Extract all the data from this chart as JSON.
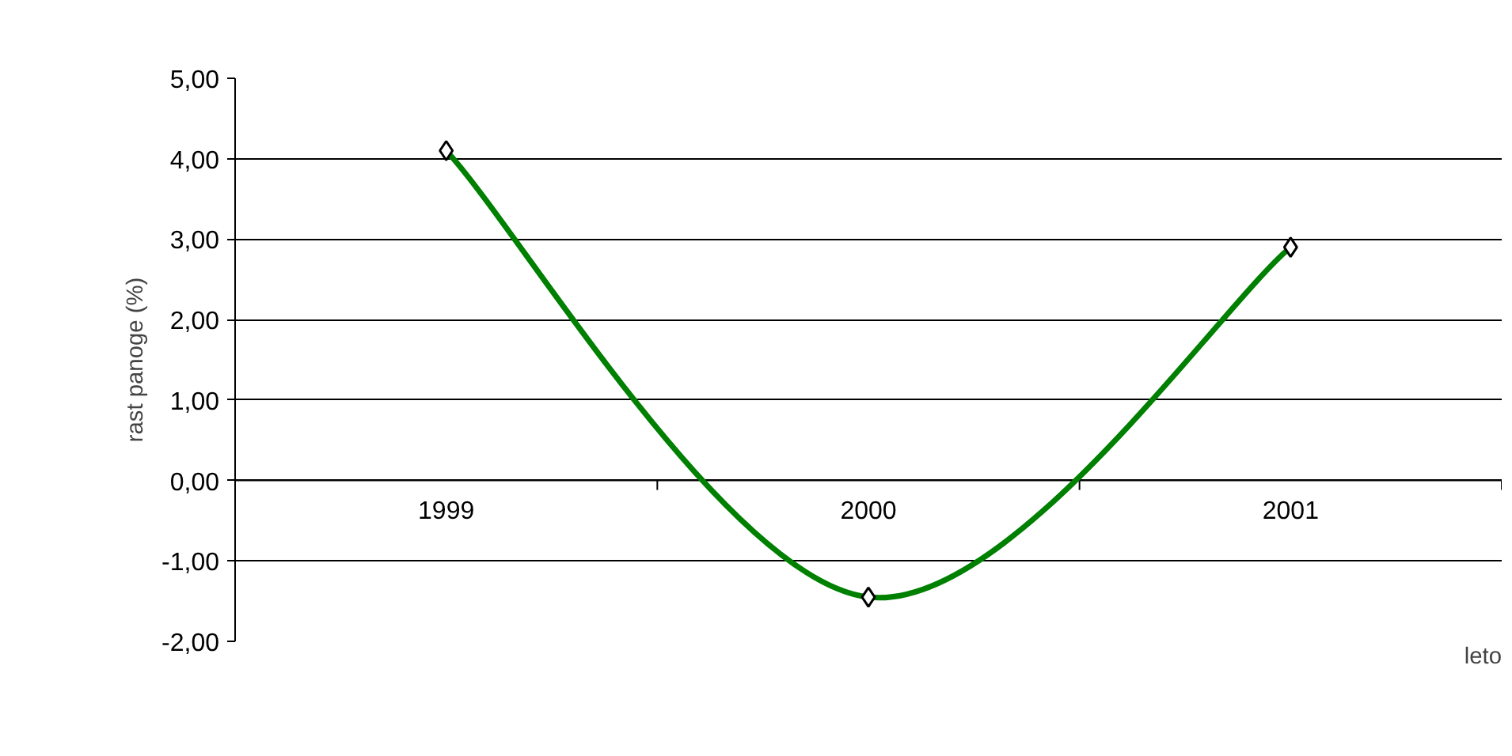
{
  "chart_data": {
    "type": "line",
    "categories": [
      "1999",
      "2000",
      "2001"
    ],
    "values": [
      4.1,
      -1.45,
      2.9
    ],
    "color": "#008000",
    "ylim": [
      -2,
      5
    ],
    "yticks": [
      {
        "value": -2,
        "label": "-2,00"
      },
      {
        "value": -1,
        "label": "-1,00"
      },
      {
        "value": 0,
        "label": "0,00"
      },
      {
        "value": 1,
        "label": "1,00"
      },
      {
        "value": 2,
        "label": "2,00"
      },
      {
        "value": 3,
        "label": "3,00"
      },
      {
        "value": 4,
        "label": "4,00"
      },
      {
        "value": 5,
        "label": "5,00"
      }
    ],
    "ylabel": "rast panoge (%)",
    "xlabel": "leto",
    "grid": "y",
    "marker": "diamond"
  }
}
